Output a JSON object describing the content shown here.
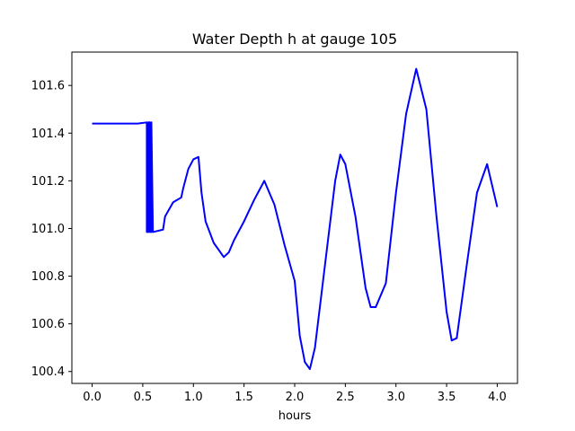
{
  "chart_data": {
    "type": "line",
    "title": "Water Depth h at gauge 105",
    "xlabel": "hours",
    "ylabel": "",
    "xlim": [
      -0.2,
      4.2
    ],
    "ylim": [
      100.35,
      101.74
    ],
    "x_ticks": [
      0.0,
      0.5,
      1.0,
      1.5,
      2.0,
      2.5,
      3.0,
      3.5,
      4.0
    ],
    "x_tick_labels": [
      "0.0",
      "0.5",
      "1.0",
      "1.5",
      "2.0",
      "2.5",
      "3.0",
      "3.5",
      "4.0"
    ],
    "y_ticks": [
      100.4,
      100.6,
      100.8,
      101.0,
      101.2,
      101.4,
      101.6
    ],
    "y_tick_labels": [
      "100.4",
      "100.6",
      "100.8",
      "101.0",
      "101.2",
      "101.4",
      "101.6"
    ],
    "grid": false,
    "legend": "none",
    "series": [
      {
        "color": "#0000ff",
        "x": [
          0.0,
          0.45,
          0.54,
          0.54,
          0.555,
          0.555,
          0.57,
          0.57,
          0.585,
          0.585,
          0.6,
          0.7,
          0.72,
          0.8,
          0.88,
          0.9,
          0.95,
          1.0,
          1.05,
          1.08,
          1.12,
          1.2,
          1.3,
          1.35,
          1.4,
          1.5,
          1.6,
          1.7,
          1.8,
          1.9,
          2.0,
          2.05,
          2.1,
          2.15,
          2.2,
          2.3,
          2.4,
          2.45,
          2.5,
          2.6,
          2.7,
          2.75,
          2.8,
          2.9,
          3.0,
          3.1,
          3.2,
          3.3,
          3.4,
          3.5,
          3.55,
          3.6,
          3.7,
          3.8,
          3.9,
          4.0
        ],
        "y": [
          101.44,
          101.44,
          101.445,
          100.985,
          100.985,
          101.445,
          101.445,
          100.985,
          100.985,
          101.445,
          100.985,
          100.995,
          101.05,
          101.11,
          101.13,
          101.17,
          101.25,
          101.29,
          101.3,
          101.15,
          101.03,
          100.94,
          100.88,
          100.9,
          100.95,
          101.03,
          101.12,
          101.2,
          101.1,
          100.93,
          100.78,
          100.55,
          100.44,
          100.41,
          100.5,
          100.85,
          101.2,
          101.31,
          101.27,
          101.05,
          100.75,
          100.67,
          100.67,
          100.77,
          101.15,
          101.48,
          101.67,
          101.5,
          101.05,
          100.65,
          100.53,
          100.54,
          100.85,
          101.15,
          101.27,
          101.09
        ]
      }
    ]
  }
}
